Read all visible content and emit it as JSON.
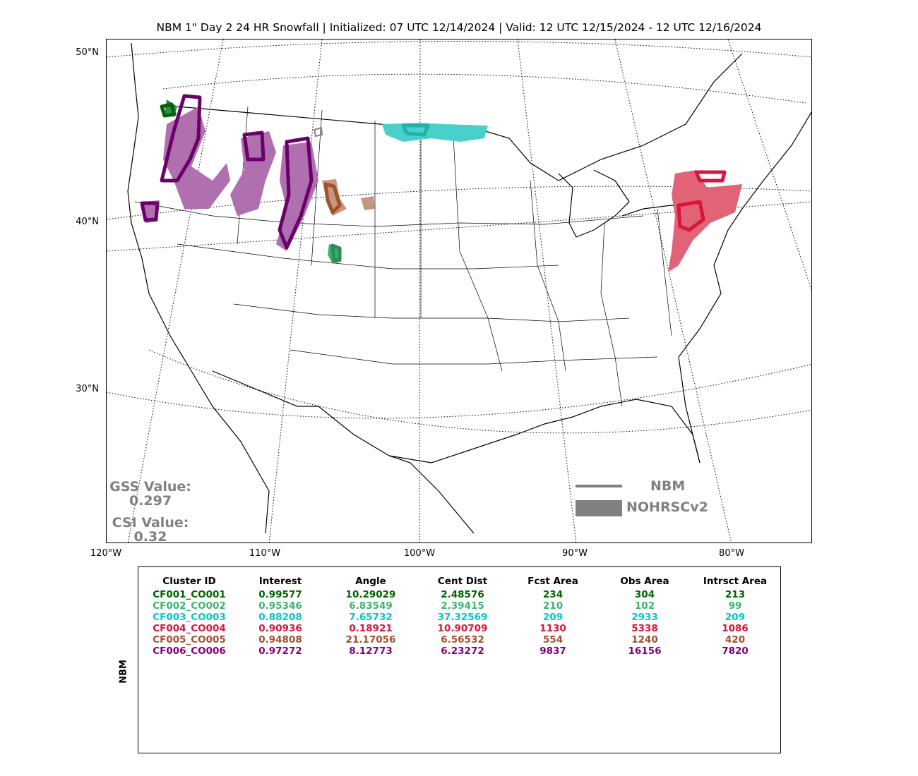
{
  "title": "NBM 1\" Day 2 24 HR Snowfall | Initialized: 07 UTC 12/14/2024 | Valid: 12 UTC 12/15/2024 - 12 UTC 12/16/2024",
  "lat_labels": [
    "50°N",
    "40°N",
    "30°N"
  ],
  "lon_labels": [
    "120°W",
    "110°W",
    "100°W",
    "90°W",
    "80°W"
  ],
  "scores": {
    "gss_label": "GSS Value:",
    "gss_value": "0.297",
    "csi_label": "CSI Value:",
    "csi_value": "0.32"
  },
  "legend": {
    "forecast_label": "NBM",
    "observed_label": "NOHRSCv2",
    "color": "#808080"
  },
  "table": {
    "side_label": "NBM",
    "columns": [
      "Cluster ID",
      "Interest",
      "Angle",
      "Cent Dist",
      "Fcst Area",
      "Obs Area",
      "Intrsct Area"
    ],
    "rows": [
      {
        "color": "#006400",
        "cells": [
          "CF001_CO001",
          "0.99577",
          "10.29029",
          "2.48576",
          "234",
          "304",
          "213"
        ]
      },
      {
        "color": "#3cb371",
        "cells": [
          "CF002_CO002",
          "0.95346",
          "6.83549",
          "2.39415",
          "210",
          "102",
          "99"
        ]
      },
      {
        "color": "#00c8c8",
        "cells": [
          "CF003_CO003",
          "0.88208",
          "7.65732",
          "37.32569",
          "209",
          "2933",
          "209"
        ]
      },
      {
        "color": "#dc143c",
        "cells": [
          "CF004_CO004",
          "0.90936",
          "0.18921",
          "10.90709",
          "1130",
          "5338",
          "1086"
        ]
      },
      {
        "color": "#a0522d",
        "cells": [
          "CF005_CO005",
          "0.94808",
          "21.17056",
          "6.56532",
          "554",
          "1240",
          "420"
        ]
      },
      {
        "color": "#800080",
        "cells": [
          "CF006_CO006",
          "0.97272",
          "8.12773",
          "6.23272",
          "9837",
          "16156",
          "7820"
        ]
      }
    ]
  },
  "map_features": {
    "clusters": [
      {
        "id": "CF001_CO001",
        "fill": "#2e8b57",
        "outline": "#006400"
      },
      {
        "id": "CF002_CO002",
        "fill": "#3cb371",
        "outline": "#2e8b57"
      },
      {
        "id": "CF003_CO003",
        "fill": "#48d1cc",
        "outline": "#20b2aa"
      },
      {
        "id": "CF004_CO004",
        "fill": "#e06377",
        "outline": "#dc143c"
      },
      {
        "id": "CF005_CO005",
        "fill": "#c89680",
        "outline": "#a0522d"
      },
      {
        "id": "CF006_CO006",
        "fill": "#b070b0",
        "outline": "#6a006a"
      }
    ]
  }
}
